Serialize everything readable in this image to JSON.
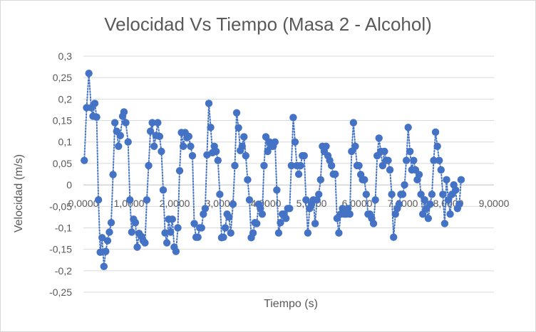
{
  "chart_data": {
    "type": "scatter",
    "title": "Velocidad Vs Tiempo (Masa 2 - Alcohol)",
    "xlabel": "Tiempo (s)",
    "ylabel": "Velocidad (m/s)",
    "xlim": [
      0,
      9
    ],
    "ylim": [
      -0.25,
      0.3
    ],
    "x_ticks": [
      "0,0000",
      "1,0000",
      "2,0000",
      "3,0000",
      "4,0000",
      "5,0000",
      "6,0000",
      "7,0000",
      "8,0000",
      "9,0000"
    ],
    "y_ticks": [
      "0,3",
      "0,25",
      "0,2",
      "0,15",
      "0,1",
      "0,05",
      "0",
      "-0,05",
      "-0,1",
      "-0,15",
      "-0,2",
      "-0,25"
    ],
    "grid": "horizontal",
    "legend": "none",
    "series": [
      {
        "marker_color": "#4472c4",
        "line_style": "dotted",
        "points": [
          [
            0.02,
            0.057
          ],
          [
            0.07,
            0.18
          ],
          [
            0.12,
            0.26
          ],
          [
            0.17,
            0.18
          ],
          [
            0.21,
            0.16
          ],
          [
            0.25,
            0.19
          ],
          [
            0.29,
            0.158
          ],
          [
            0.33,
            -0.035
          ],
          [
            0.37,
            -0.157
          ],
          [
            0.41,
            -0.123
          ],
          [
            0.45,
            -0.19
          ],
          [
            0.49,
            -0.155
          ],
          [
            0.53,
            -0.13
          ],
          [
            0.57,
            -0.11
          ],
          [
            0.61,
            -0.088
          ],
          [
            0.65,
            0.024
          ],
          [
            0.69,
            0.145
          ],
          [
            0.73,
            0.125
          ],
          [
            0.77,
            0.09
          ],
          [
            0.81,
            0.115
          ],
          [
            0.86,
            0.16
          ],
          [
            0.89,
            0.17
          ],
          [
            0.93,
            0.145
          ],
          [
            0.98,
            0.1
          ],
          [
            1.02,
            -0.035
          ],
          [
            1.06,
            -0.11
          ],
          [
            1.1,
            -0.08
          ],
          [
            1.14,
            -0.088
          ],
          [
            1.18,
            -0.145
          ],
          [
            1.22,
            -0.113
          ],
          [
            1.27,
            -0.12
          ],
          [
            1.31,
            -0.13
          ],
          [
            1.35,
            -0.135
          ],
          [
            1.39,
            -0.035
          ],
          [
            1.43,
            0.045
          ],
          [
            1.47,
            0.125
          ],
          [
            1.51,
            0.145
          ],
          [
            1.55,
            0.09
          ],
          [
            1.59,
            0.115
          ],
          [
            1.63,
            0.145
          ],
          [
            1.67,
            0.113
          ],
          [
            1.71,
            0.078
          ],
          [
            1.75,
            -0.012
          ],
          [
            1.79,
            -0.112
          ],
          [
            1.83,
            -0.135
          ],
          [
            1.87,
            -0.08
          ],
          [
            1.91,
            -0.11
          ],
          [
            1.95,
            -0.08
          ],
          [
            1.99,
            -0.145
          ],
          [
            2.03,
            -0.155
          ],
          [
            2.07,
            -0.1
          ],
          [
            2.11,
            0.033
          ],
          [
            2.15,
            0.122
          ],
          [
            2.19,
            0.09
          ],
          [
            2.23,
            0.122
          ],
          [
            2.27,
            0.11
          ],
          [
            2.31,
            0.113
          ],
          [
            2.35,
            0.09
          ],
          [
            2.39,
            0.068
          ],
          [
            2.43,
            -0.09
          ],
          [
            2.47,
            -0.122
          ],
          [
            2.51,
            -0.122
          ],
          [
            2.55,
            -0.1
          ],
          [
            2.59,
            -0.1
          ],
          [
            2.63,
            -0.068
          ],
          [
            2.67,
            -0.055
          ],
          [
            2.71,
            0.07
          ],
          [
            2.75,
            0.19
          ],
          [
            2.79,
            0.134
          ],
          [
            2.83,
            0.075
          ],
          [
            2.87,
            0.09
          ],
          [
            2.91,
            0.078
          ],
          [
            2.95,
            0.057
          ],
          [
            2.99,
            -0.022
          ],
          [
            3.03,
            -0.123
          ],
          [
            3.07,
            -0.122
          ],
          [
            3.11,
            -0.1
          ],
          [
            3.15,
            -0.068
          ],
          [
            3.19,
            -0.075
          ],
          [
            3.23,
            -0.112
          ],
          [
            3.28,
            -0.045
          ],
          [
            3.32,
            0.045
          ],
          [
            3.36,
            0.168
          ],
          [
            3.4,
            0.133
          ],
          [
            3.44,
            0.08
          ],
          [
            3.48,
            0.09
          ],
          [
            3.52,
            0.112
          ],
          [
            3.56,
            0.068
          ],
          [
            3.6,
            0.012
          ],
          [
            3.64,
            -0.035
          ],
          [
            3.68,
            -0.123
          ],
          [
            3.72,
            -0.112
          ],
          [
            3.76,
            -0.088
          ],
          [
            3.8,
            -0.09
          ],
          [
            3.84,
            -0.045
          ],
          [
            3.88,
            -0.055
          ],
          [
            3.92,
            -0.068
          ],
          [
            3.96,
            0.045
          ],
          [
            4.0,
            0.112
          ],
          [
            4.04,
            0.078
          ],
          [
            4.08,
            0.1
          ],
          [
            4.12,
            0.09
          ],
          [
            4.16,
            0.09
          ],
          [
            4.2,
            0.1
          ],
          [
            4.24,
            -0.012
          ],
          [
            4.28,
            -0.112
          ],
          [
            4.32,
            -0.088
          ],
          [
            4.36,
            -0.068
          ],
          [
            4.4,
            -0.068
          ],
          [
            4.44,
            -0.078
          ],
          [
            4.48,
            -0.055
          ],
          [
            4.52,
            -0.055
          ],
          [
            4.56,
            0.045
          ],
          [
            4.6,
            0.157
          ],
          [
            4.64,
            0.1
          ],
          [
            4.68,
            0.045
          ],
          [
            4.72,
            0.025
          ],
          [
            4.76,
            0.045
          ],
          [
            4.8,
            0.068
          ],
          [
            4.84,
            0.068
          ],
          [
            4.88,
            -0.035
          ],
          [
            4.92,
            -0.112
          ],
          [
            4.96,
            -0.055
          ],
          [
            5.0,
            -0.045
          ],
          [
            5.04,
            -0.035
          ],
          [
            5.08,
            -0.09
          ],
          [
            5.12,
            -0.035
          ],
          [
            5.16,
            -0.022
          ],
          [
            5.2,
            0.012
          ],
          [
            5.24,
            0.09
          ],
          [
            5.28,
            0.078
          ],
          [
            5.32,
            0.09
          ],
          [
            5.36,
            0.068
          ],
          [
            5.4,
            0.057
          ],
          [
            5.44,
            0.045
          ],
          [
            5.48,
            0.025
          ],
          [
            5.52,
            0.025
          ],
          [
            5.56,
            -0.078
          ],
          [
            5.6,
            -0.112
          ],
          [
            5.64,
            -0.068
          ],
          [
            5.68,
            -0.055
          ],
          [
            5.72,
            -0.068
          ],
          [
            5.76,
            -0.068
          ],
          [
            5.8,
            -0.055
          ],
          [
            5.84,
            -0.068
          ],
          [
            5.88,
            0.078
          ],
          [
            5.92,
            0.145
          ],
          [
            5.96,
            0.09
          ],
          [
            6.0,
            0.045
          ],
          [
            6.04,
            0.045
          ],
          [
            6.08,
            0.024
          ],
          [
            6.12,
            0.012
          ],
          [
            6.16,
            0.012
          ],
          [
            6.2,
            -0.022
          ],
          [
            6.24,
            -0.068
          ],
          [
            6.28,
            -0.068
          ],
          [
            6.32,
            -0.078
          ],
          [
            6.36,
            -0.09
          ],
          [
            6.4,
            -0.035
          ],
          [
            6.44,
            0.068
          ],
          [
            6.48,
            0.109
          ],
          [
            6.52,
            0.078
          ],
          [
            6.56,
            0.045
          ],
          [
            6.6,
            0.078
          ],
          [
            6.64,
            0.057
          ],
          [
            6.68,
            0.057
          ],
          [
            6.72,
            0.035
          ],
          [
            6.76,
            -0.022
          ],
          [
            6.8,
            -0.122
          ],
          [
            6.84,
            -0.068
          ],
          [
            6.88,
            -0.055
          ],
          [
            6.92,
            -0.045
          ],
          [
            6.96,
            -0.022
          ],
          [
            7.0,
            -0.022
          ],
          [
            7.04,
            0.0
          ],
          [
            7.08,
            0.057
          ],
          [
            7.12,
            0.134
          ],
          [
            7.16,
            0.078
          ],
          [
            7.2,
            0.035
          ],
          [
            7.24,
            0.057
          ],
          [
            7.28,
            0.035
          ],
          [
            7.32,
            0.012
          ],
          [
            7.36,
            0.024
          ],
          [
            7.4,
            -0.022
          ],
          [
            7.44,
            -0.068
          ],
          [
            7.48,
            -0.035
          ],
          [
            7.52,
            -0.055
          ],
          [
            7.56,
            -0.078
          ],
          [
            7.6,
            -0.045
          ],
          [
            7.64,
            -0.022
          ],
          [
            7.68,
            0.057
          ],
          [
            7.72,
            0.123
          ],
          [
            7.76,
            0.09
          ],
          [
            7.8,
            0.057
          ],
          [
            7.84,
            0.035
          ],
          [
            7.88,
            -0.022
          ],
          [
            7.92,
            -0.09
          ],
          [
            7.96,
            0.012
          ],
          [
            8.0,
            -0.035
          ],
          [
            8.04,
            -0.068
          ],
          [
            8.08,
            -0.022
          ],
          [
            8.12,
            0.0
          ],
          [
            8.16,
            -0.012
          ],
          [
            8.2,
            -0.055
          ],
          [
            8.24,
            -0.045
          ],
          [
            8.28,
            0.012
          ]
        ]
      }
    ]
  }
}
